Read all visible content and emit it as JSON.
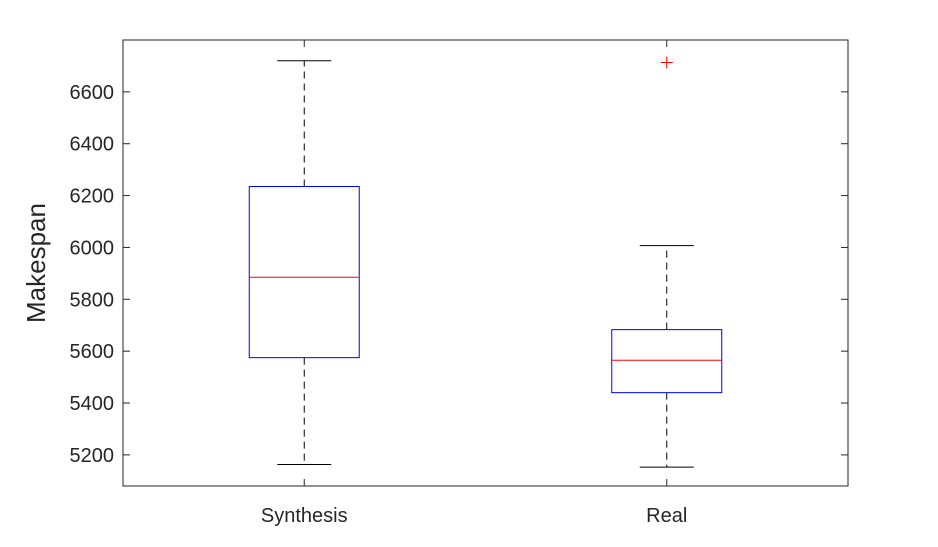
{
  "chart_data": {
    "type": "box",
    "title": "",
    "xlabel": "",
    "ylabel": "Makespan",
    "ylim": [
      5080,
      6800
    ],
    "yticks": [
      5200,
      5400,
      5600,
      5800,
      6000,
      6200,
      6400,
      6600
    ],
    "categories": [
      "Synthesis",
      "Real"
    ],
    "grid": false,
    "colors": {
      "box": "#0000ff",
      "median": "#ff0000",
      "whisker": "#000000",
      "outlier": "#ff0000",
      "axis": "#262626"
    },
    "boxes": [
      {
        "category": "Synthesis",
        "whisker_low": 5163,
        "q1": 5575,
        "median": 5885,
        "q3": 6235,
        "whisker_high": 6720,
        "outliers": []
      },
      {
        "category": "Real",
        "whisker_low": 5153,
        "q1": 5440,
        "median": 5565,
        "q3": 5683,
        "whisker_high": 6007,
        "outliers": [
          6713
        ]
      }
    ]
  }
}
